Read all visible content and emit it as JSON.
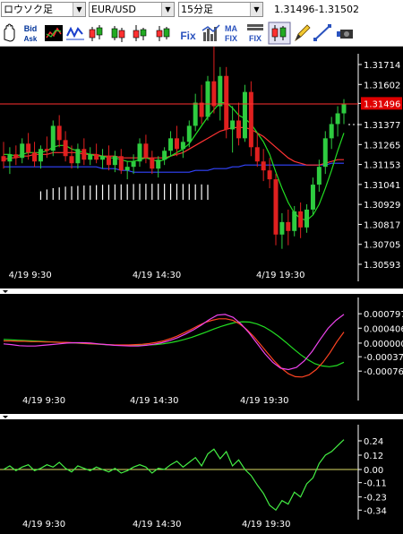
{
  "toolbar": {
    "chart_type": "ロウソク足",
    "symbol": "EUR/USD",
    "period": "15分足",
    "quote": "1.31496-1.31502",
    "buttons": [
      {
        "name": "hand-tool-icon",
        "label": "✋"
      },
      {
        "name": "bid-ask-button",
        "label": "Bid\nAsk"
      },
      {
        "name": "chart-style-button-1",
        "label": ""
      },
      {
        "name": "chart-style-button-2",
        "label": ""
      },
      {
        "name": "candlestick-button-1",
        "label": ""
      },
      {
        "name": "candlestick-button-2",
        "label": ""
      },
      {
        "name": "candlestick-button-3",
        "label": ""
      },
      {
        "name": "candlestick-button-4",
        "label": ""
      },
      {
        "name": "fix-button",
        "label": "Fix"
      },
      {
        "name": "volume-button",
        "label": ""
      },
      {
        "name": "ma-fix-button",
        "label": "MA\nFIX"
      },
      {
        "name": "fix-list-button",
        "label": "FIX"
      },
      {
        "name": "candle-select-button",
        "label": ""
      },
      {
        "name": "pencil-icon",
        "label": "✎"
      },
      {
        "name": "line-tool-icon",
        "label": ""
      },
      {
        "name": "camera-icon",
        "label": ""
      }
    ]
  },
  "colors": {
    "background": "#000000",
    "up_candle": "#2ecc40",
    "down_candle": "#e0201f",
    "current_price_line": "#ff3030",
    "current_price_label": "#e00000",
    "ma_short": "#22dd22",
    "ma_mid": "#ff3333",
    "ma_long": "#3344ff",
    "volume": "#ffffff",
    "macd_green": "#22dd22",
    "macd_red": "#ff4422",
    "macd_magenta": "#ee44ee",
    "osc_line": "#44ee44",
    "osc_zero": "#dddd66"
  },
  "chart_data": [
    {
      "type": "candlestick",
      "name": "price",
      "y_ticks": [
        "1.31714",
        "1.31602",
        "1.31496",
        "1.31377",
        "1.31265",
        "1.31153",
        "1.31041",
        "1.30929",
        "1.30817",
        "1.30705",
        "1.30593"
      ],
      "ylim": [
        1.30593,
        1.31714
      ],
      "current_price": "1.31496",
      "x_ticks": [
        "4/19 9:30",
        "4/19 14:30",
        "4/19 19:30"
      ],
      "x_tick_index": [
        4,
        24,
        44
      ],
      "ohlc": [
        [
          1.312,
          1.3128,
          1.3113,
          1.3117
        ],
        [
          1.3117,
          1.3125,
          1.311,
          1.3121
        ],
        [
          1.3121,
          1.3126,
          1.3115,
          1.3119
        ],
        [
          1.3119,
          1.313,
          1.3116,
          1.3127
        ],
        [
          1.3127,
          1.3133,
          1.3118,
          1.3122
        ],
        [
          1.3122,
          1.3128,
          1.3114,
          1.3117
        ],
        [
          1.3117,
          1.3126,
          1.3113,
          1.3124
        ],
        [
          1.3124,
          1.3131,
          1.3119,
          1.3123
        ],
        [
          1.3123,
          1.314,
          1.312,
          1.3137
        ],
        [
          1.3137,
          1.3143,
          1.3125,
          1.3129
        ],
        [
          1.3129,
          1.3134,
          1.3117,
          1.312
        ],
        [
          1.312,
          1.3126,
          1.3113,
          1.3116
        ],
        [
          1.3116,
          1.3127,
          1.3113,
          1.3124
        ],
        [
          1.3124,
          1.313,
          1.3115,
          1.3118
        ],
        [
          1.3118,
          1.3125,
          1.3115,
          1.3121
        ],
        [
          1.3121,
          1.3127,
          1.3116,
          1.3118
        ],
        [
          1.3118,
          1.3124,
          1.3113,
          1.312
        ],
        [
          1.312,
          1.3126,
          1.3112,
          1.3115
        ],
        [
          1.3115,
          1.3123,
          1.3111,
          1.312
        ],
        [
          1.312,
          1.3124,
          1.311,
          1.3112
        ],
        [
          1.3112,
          1.3117,
          1.3107,
          1.3114
        ],
        [
          1.3114,
          1.3121,
          1.311,
          1.3117
        ],
        [
          1.3117,
          1.313,
          1.3114,
          1.3127
        ],
        [
          1.3127,
          1.3132,
          1.3116,
          1.3119
        ],
        [
          1.3119,
          1.3123,
          1.311,
          1.3113
        ],
        [
          1.3113,
          1.312,
          1.3108,
          1.3118
        ],
        [
          1.3118,
          1.3125,
          1.3115,
          1.3123
        ],
        [
          1.3123,
          1.3134,
          1.312,
          1.313
        ],
        [
          1.313,
          1.3137,
          1.312,
          1.3124
        ],
        [
          1.3124,
          1.3131,
          1.3119,
          1.3128
        ],
        [
          1.3128,
          1.314,
          1.3125,
          1.3137
        ],
        [
          1.3137,
          1.3155,
          1.3134,
          1.315
        ],
        [
          1.315,
          1.316,
          1.3138,
          1.3142
        ],
        [
          1.3142,
          1.3165,
          1.314,
          1.3162
        ],
        [
          1.3162,
          1.3185,
          1.3144,
          1.3148
        ],
        [
          1.3148,
          1.317,
          1.314,
          1.3165
        ],
        [
          1.3165,
          1.317,
          1.313,
          1.3135
        ],
        [
          1.3135,
          1.3148,
          1.3122,
          1.314
        ],
        [
          1.314,
          1.315,
          1.3126,
          1.313
        ],
        [
          1.313,
          1.316,
          1.3128,
          1.3156
        ],
        [
          1.3156,
          1.3162,
          1.312,
          1.3125
        ],
        [
          1.3125,
          1.3133,
          1.3114,
          1.3117
        ],
        [
          1.3117,
          1.3124,
          1.3106,
          1.3112
        ],
        [
          1.3112,
          1.3119,
          1.3102,
          1.3107
        ],
        [
          1.3107,
          1.311,
          1.307,
          1.3076
        ],
        [
          1.3076,
          1.3088,
          1.3068,
          1.3083
        ],
        [
          1.3083,
          1.309,
          1.307,
          1.3078
        ],
        [
          1.3078,
          1.3092,
          1.3075,
          1.3089
        ],
        [
          1.3089,
          1.3094,
          1.3074,
          1.308
        ],
        [
          1.308,
          1.3093,
          1.3077,
          1.309
        ],
        [
          1.309,
          1.3108,
          1.3087,
          1.3104
        ],
        [
          1.3104,
          1.3118,
          1.31,
          1.3114
        ],
        [
          1.3114,
          1.3134,
          1.311,
          1.313
        ],
        [
          1.313,
          1.3142,
          1.3124,
          1.3138
        ],
        [
          1.3138,
          1.3148,
          1.3131,
          1.3144
        ],
        [
          1.3144,
          1.3152,
          1.3138,
          1.3149
        ]
      ],
      "ma_short": [
        1.3121,
        1.3121,
        1.312,
        1.3121,
        1.3122,
        1.3122,
        1.3122,
        1.3123,
        1.3125,
        1.3126,
        1.3126,
        1.3124,
        1.3123,
        1.3122,
        1.3121,
        1.312,
        1.312,
        1.3119,
        1.3119,
        1.3118,
        1.3117,
        1.3117,
        1.3118,
        1.3119,
        1.3118,
        1.3117,
        1.3118,
        1.312,
        1.3122,
        1.3124,
        1.3127,
        1.3132,
        1.3137,
        1.3142,
        1.3146,
        1.315,
        1.315,
        1.3147,
        1.3143,
        1.3141,
        1.3138,
        1.3133,
        1.3128,
        1.3121,
        1.3111,
        1.3102,
        1.3094,
        1.3088,
        1.3085,
        1.3084,
        1.3087,
        1.3093,
        1.3102,
        1.3112,
        1.3123,
        1.3133
      ],
      "ma_mid": [
        1.3118,
        1.3119,
        1.3119,
        1.312,
        1.312,
        1.3121,
        1.3121,
        1.3121,
        1.3122,
        1.3122,
        1.3122,
        1.3122,
        1.3122,
        1.3121,
        1.3121,
        1.3121,
        1.312,
        1.312,
        1.312,
        1.3119,
        1.3119,
        1.3119,
        1.3119,
        1.3119,
        1.3119,
        1.3119,
        1.3119,
        1.312,
        1.3121,
        1.3122,
        1.3124,
        1.3126,
        1.3128,
        1.313,
        1.3132,
        1.3134,
        1.3135,
        1.3136,
        1.3136,
        1.3136,
        1.3135,
        1.3133,
        1.3131,
        1.3128,
        1.3125,
        1.3122,
        1.3119,
        1.3117,
        1.3116,
        1.3115,
        1.3115,
        1.3115,
        1.3116,
        1.3117,
        1.3118,
        1.3118
      ],
      "ma_long": [
        1.3114,
        1.3114,
        1.3114,
        1.3114,
        1.3114,
        1.3114,
        1.3114,
        1.3114,
        1.3114,
        1.3114,
        1.3114,
        1.3114,
        1.3114,
        1.3114,
        1.3114,
        1.3114,
        1.3113,
        1.3113,
        1.3113,
        1.3112,
        1.3112,
        1.3111,
        1.3111,
        1.3111,
        1.3111,
        1.3111,
        1.3111,
        1.3111,
        1.3111,
        1.3111,
        1.3111,
        1.3112,
        1.3112,
        1.3112,
        1.3113,
        1.3113,
        1.3113,
        1.3114,
        1.3114,
        1.3115,
        1.3115,
        1.3115,
        1.3115,
        1.3115,
        1.3115,
        1.3115,
        1.3115,
        1.3115,
        1.3115,
        1.3115,
        1.3115,
        1.3115,
        1.3115,
        1.3116,
        1.3116,
        1.3116
      ],
      "volume": [
        0,
        0,
        0,
        0,
        0,
        0,
        0.45,
        0.55,
        0.62,
        0.66,
        0.7,
        0.72,
        0.74,
        0.76,
        0.76,
        0.78,
        0.8,
        0.8,
        0.82,
        0.82,
        0.83,
        0.84,
        0.85,
        0.85,
        0.85,
        0.85,
        0.85,
        0.85,
        0.85,
        0.84,
        0.84,
        0.82,
        0.82,
        0.8,
        0,
        0,
        0,
        0,
        0,
        0,
        0,
        0,
        0,
        0,
        0,
        0,
        0,
        0,
        0,
        0,
        0,
        0,
        0,
        0,
        0,
        0
      ]
    },
    {
      "type": "line",
      "name": "macd",
      "y_ticks": [
        "0.000797",
        "0.000406",
        "0.000000",
        "-0.00037",
        "-0.00076"
      ],
      "ylim": [
        -0.00095,
        0.00085
      ],
      "x_ticks": [
        "4/19 9:30",
        "4/19 14:30",
        "4/19 19:30"
      ],
      "series": [
        {
          "color": "green",
          "values": [
            0.0001,
            9e-05,
            8e-05,
            7e-05,
            6e-05,
            5e-05,
            4e-05,
            3e-05,
            2e-05,
            1e-05,
            0.0,
            -1e-05,
            -2e-05,
            -3e-05,
            -4e-05,
            -5e-05,
            -6e-05,
            -6e-05,
            -6e-05,
            -6e-05,
            -5e-05,
            -4e-05,
            -2e-05,
            1e-05,
            5e-05,
            0.0001,
            0.00016,
            0.00023,
            0.0003,
            0.00038,
            0.00045,
            0.00051,
            0.00056,
            0.00058,
            0.00057,
            0.00052,
            0.00044,
            0.00032,
            0.00018,
            2e-05,
            -0.00015,
            -0.00031,
            -0.00045,
            -0.00056,
            -0.00062,
            -0.00064,
            -0.00061,
            -0.00052
          ]
        },
        {
          "color": "red",
          "values": [
            6e-05,
            6e-05,
            5e-05,
            5e-05,
            4e-05,
            4e-05,
            3e-05,
            3e-05,
            2e-05,
            2e-05,
            1e-05,
            0.0,
            -1e-05,
            -2e-05,
            -3e-05,
            -4e-05,
            -5e-05,
            -5e-05,
            -5e-05,
            -4e-05,
            -3e-05,
            -1e-05,
            2e-05,
            6e-05,
            0.00012,
            0.00019,
            0.00028,
            0.00037,
            0.00047,
            0.00056,
            0.00062,
            0.00066,
            0.00066,
            0.00062,
            0.00052,
            0.00037,
            0.00018,
            -4e-05,
            -0.00027,
            -0.00049,
            -0.00068,
            -0.00083,
            -0.00091,
            -0.00092,
            -0.00086,
            -0.00072,
            -0.00052,
            -0.00026,
            4e-05,
            0.0003
          ]
        },
        {
          "color": "magenta",
          "values": [
            -2e-05,
            -4e-05,
            -7e-05,
            -8e-05,
            -8e-05,
            -6e-05,
            -4e-05,
            -2e-05,
            0.0,
            1e-05,
            1e-05,
            0.0,
            -2e-05,
            -4e-05,
            -6e-05,
            -7e-05,
            -8e-05,
            -8e-05,
            -6e-05,
            -3e-05,
            1e-05,
            7e-05,
            0.00015,
            0.00025,
            0.00036,
            0.00049,
            0.00064,
            0.00076,
            0.00078,
            0.0007,
            0.00052,
            0.00028,
            0.0,
            -0.00028,
            -0.00052,
            -0.00068,
            -0.00072,
            -0.00066,
            -0.00048,
            -0.00022,
            0.0001,
            0.0004,
            0.00062,
            0.00078
          ]
        }
      ]
    },
    {
      "type": "line",
      "name": "oscillator",
      "y_ticks": [
        "0.24",
        "0.12",
        "0.00",
        "-0.11",
        "-0.23",
        "-0.34"
      ],
      "ylim": [
        -0.36,
        0.27
      ],
      "x_ticks": [
        "4/19 9:30",
        "4/19 14:30",
        "4/19 19:30"
      ],
      "series": [
        {
          "color": "green",
          "values": [
            0.0,
            0.03,
            -0.01,
            0.02,
            0.04,
            -0.01,
            0.01,
            0.04,
            0.02,
            0.06,
            0.01,
            -0.02,
            0.03,
            0.01,
            -0.01,
            0.02,
            0.0,
            -0.02,
            0.01,
            -0.03,
            -0.01,
            0.02,
            0.04,
            0.02,
            -0.03,
            0.01,
            0.0,
            0.04,
            0.07,
            0.02,
            0.06,
            0.1,
            0.03,
            0.13,
            0.17,
            0.09,
            0.15,
            0.03,
            0.08,
            0.0,
            -0.05,
            -0.13,
            -0.2,
            -0.3,
            -0.34,
            -0.26,
            -0.29,
            -0.19,
            -0.23,
            -0.12,
            -0.07,
            0.05,
            0.12,
            0.15,
            0.2,
            0.25
          ]
        }
      ]
    }
  ]
}
